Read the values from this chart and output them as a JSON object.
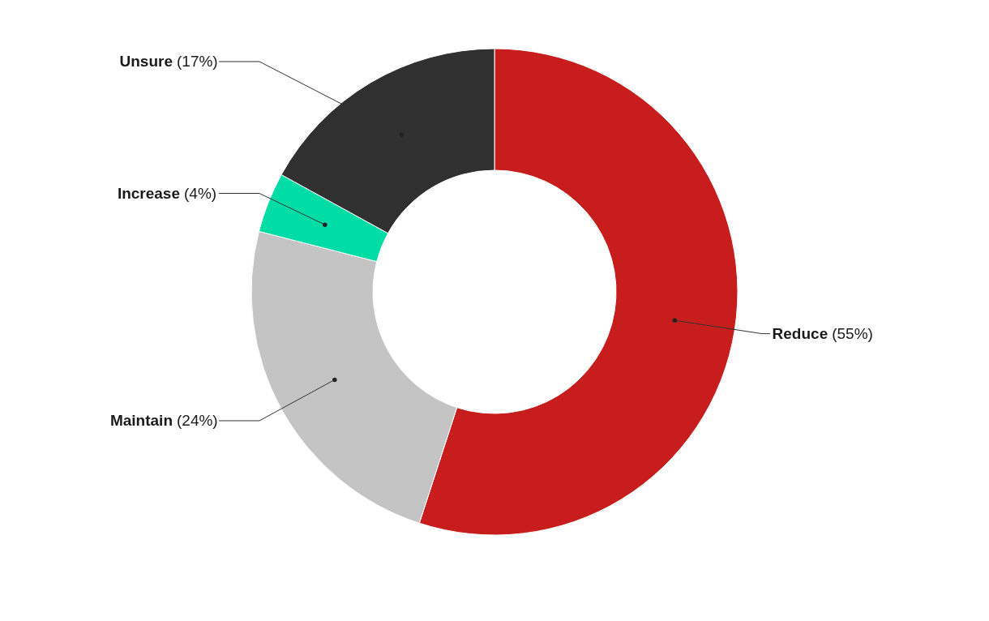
{
  "chart_data": {
    "type": "donut",
    "categories": [
      "Reduce",
      "Maintain",
      "Increase",
      "Unsure"
    ],
    "values": [
      55,
      24,
      4,
      17
    ],
    "colors": [
      "#c71e1d",
      "#c4c4c4",
      "#00dca6",
      "#303030"
    ],
    "value_labels": [
      "(55%)",
      "(24%)",
      "(4%)",
      "(17%)"
    ]
  }
}
